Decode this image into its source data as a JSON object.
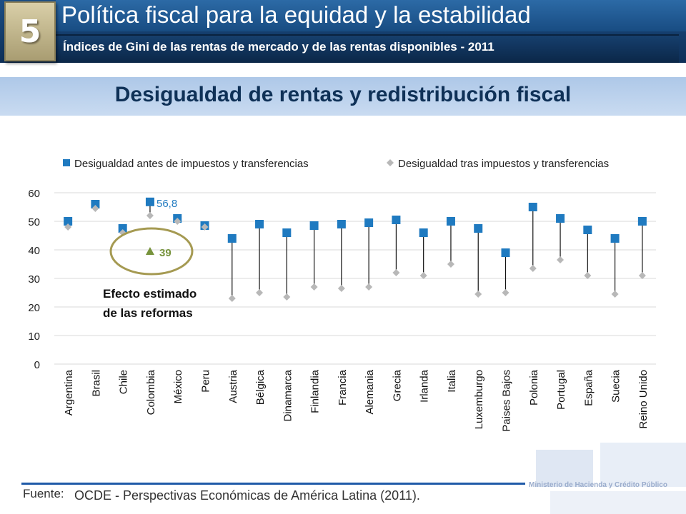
{
  "header": {
    "section_number": "5",
    "title": "Política fiscal para la equidad y la estabilidad",
    "subtitle": "Índices de Gini de las rentas de mercado y de las rentas disponibles - 2011"
  },
  "banner": {
    "title": "Desigualdad de rentas y redistribución fiscal"
  },
  "footer": {
    "label": "Fuente:",
    "source": "OCDE - Perspectivas Económicas  de América Latina (2011).",
    "ministry": "Ministerio de Hacienda y Crédito Público"
  },
  "colors": {
    "before": "#1f7ac0",
    "after": "#b8b8b8",
    "annotation": "#77933c",
    "ellipse": "#a59a52"
  },
  "chart_data": {
    "type": "scatter",
    "categories": [
      "Argentina",
      "Brasil",
      "Chile",
      "Colombia",
      "México",
      "Peru",
      "Austria",
      "Bélgica",
      "Dinamarca",
      "Finlandia",
      "Francia",
      "Alemania",
      "Grecia",
      "Irlanda",
      "Italia",
      "Luxemburgo",
      "Paises Bajos",
      "Polonia",
      "Portugal",
      "España",
      "Suecia",
      "Reino Unido"
    ],
    "series": [
      {
        "name": "Desigualdad antes de impuestos y transferencias",
        "marker": "square",
        "values": [
          50,
          56,
          47.5,
          56.8,
          51,
          48.5,
          44,
          49,
          46,
          48.5,
          49,
          49.5,
          50.5,
          46,
          50,
          47.5,
          39,
          55,
          51,
          47,
          44,
          50
        ]
      },
      {
        "name": "Desigualdad tras impuestos y transferencias",
        "marker": "diamond",
        "values": [
          48,
          54.5,
          46,
          52,
          50,
          48,
          23,
          25,
          23.5,
          27,
          26.5,
          27,
          32,
          31,
          35,
          24.5,
          25,
          33.5,
          36.5,
          31,
          24.5,
          31
        ]
      }
    ],
    "ylim": [
      0,
      60
    ],
    "yticks": [
      0,
      10,
      20,
      30,
      40,
      50,
      60
    ],
    "legend_position": "top",
    "annotations": {
      "value_label": "56,8",
      "reform_value_label": "39",
      "reform_text_line1": "Efecto estimado",
      "reform_text_line2": "de las reformas"
    }
  }
}
